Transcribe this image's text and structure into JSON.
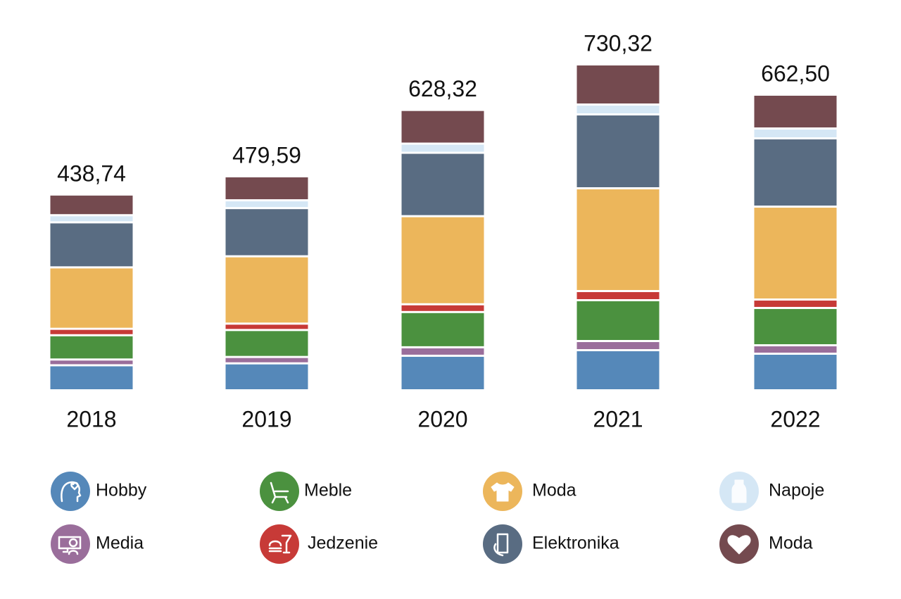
{
  "chart_data": {
    "type": "stacked-bar",
    "categories": [
      "2018",
      "2019",
      "2020",
      "2021",
      "2022"
    ],
    "series": [
      {
        "name": "Hobby",
        "color": "#5588b9",
        "values": [
          56.1,
          60.4,
          77.4,
          89.9,
          82.0
        ]
      },
      {
        "name": "Media",
        "color": "#9a6e9b",
        "values": [
          12.9,
          14.3,
          19.0,
          20.5,
          18.9
        ]
      },
      {
        "name": "Meble",
        "color": "#4b913f",
        "values": [
          54.4,
          60.4,
          79.0,
          91.5,
          83.6
        ]
      },
      {
        "name": "Jedzenie",
        "color": "#c73a37",
        "values": [
          14.4,
          14.3,
          17.4,
          20.5,
          18.9
        ]
      },
      {
        "name": "Moda",
        "color": "#ecb65b",
        "values": [
          137.7,
          150.9,
          197.4,
          230.3,
          208.2
        ]
      },
      {
        "name": "Elektronika",
        "color": "#596c82",
        "values": [
          100.9,
          108.0,
          142.1,
          165.6,
          153.0
        ]
      },
      {
        "name": "Napoje",
        "color": "#d5e7f5",
        "values": [
          16.0,
          17.5,
          20.5,
          22.1,
          22.1
        ]
      },
      {
        "name": "Moda",
        "color": "#744a4f",
        "values": [
          46.34,
          53.79,
          75.52,
          89.92,
          75.8
        ]
      }
    ],
    "totals": {
      "values": [
        438.74,
        479.59,
        628.32,
        730.32,
        662.5
      ],
      "value_labels": [
        "438,74",
        "479,59",
        "628,32",
        "730,32",
        "662,50"
      ]
    }
  }
}
